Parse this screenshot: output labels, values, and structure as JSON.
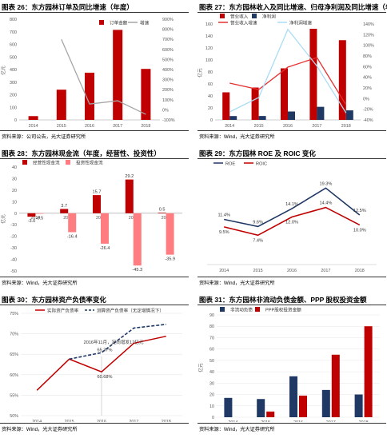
{
  "panels": [
    {
      "title": "图表 26：东方园林订单及同比增速（年度）",
      "source": "资料来源：公司公告，光大证券研究所",
      "chart_data": {
        "type": "bar+line",
        "categories": [
          "2014",
          "2015",
          "2016",
          "2017",
          "2018"
        ],
        "y_left": {
          "label": "亿元",
          "lim": [
            0,
            800
          ],
          "ticks": [
            0,
            100,
            200,
            300,
            400,
            500,
            600,
            700,
            800
          ]
        },
        "y_right": {
          "lim": [
            -100,
            900
          ],
          "ticks": [
            -100,
            0,
            100,
            200,
            300,
            400,
            500,
            600,
            700,
            800,
            900
          ],
          "suffix": "%"
        },
        "series": [
          {
            "name": "订单金额",
            "kind": "bar",
            "axis": "left",
            "color": "#c00000",
            "values": [
              30,
              240,
              375,
              715,
              405
            ]
          },
          {
            "name": "增速",
            "kind": "line",
            "axis": "right",
            "color": "#a6a6a6",
            "values": [
              null,
              700,
              57,
              90,
              -45
            ]
          }
        ],
        "legend": "top-right"
      }
    },
    {
      "title": "图表 27：东方园林收入及同比增速、归母净利润及同比增速（年度）",
      "source": "资料来源：Wind，光大证券研究所",
      "chart_data": {
        "type": "bar+line",
        "categories": [
          "2014",
          "2015",
          "2016",
          "2017",
          "2018"
        ],
        "y_left": {
          "label": "亿元",
          "lim": [
            0,
            160
          ],
          "ticks": [
            0,
            20,
            40,
            60,
            80,
            100,
            120,
            140,
            160
          ]
        },
        "y_right": {
          "lim": [
            -40,
            140
          ],
          "ticks": [
            -40,
            -20,
            0,
            20,
            40,
            60,
            80,
            100,
            120,
            140
          ],
          "suffix": "%"
        },
        "series": [
          {
            "name": "营业收入",
            "kind": "bar",
            "axis": "left",
            "color": "#c00000",
            "values": [
              46,
              54,
              86,
              152,
              133
            ]
          },
          {
            "name": "净利润",
            "kind": "bar",
            "axis": "left",
            "color": "#1f3864",
            "values": [
              6.4,
              6.5,
              14,
              21.8,
              15.9
            ]
          },
          {
            "name": "营业收入增速",
            "kind": "line",
            "axis": "right",
            "color": "#e63030",
            "values": [
              29,
              17,
              59,
              77,
              -12
            ]
          },
          {
            "name": "净利润增速",
            "kind": "line",
            "axis": "right",
            "color": "#a9dcf5",
            "values": [
              -25,
              2,
              130,
              61,
              -27
            ]
          }
        ],
        "legend": "top"
      }
    },
    {
      "title": "图表 28：东方园林现金流（年度，经营性、投资性）",
      "source": "资料来源：Wind，光大证券研究所",
      "chart_data": {
        "type": "bar",
        "categories": [
          "2014",
          "2015",
          "2016",
          "2017",
          "2018"
        ],
        "y_left": {
          "label": "亿元",
          "lim": [
            -50,
            40
          ],
          "ticks": [
            -50,
            -40,
            -30,
            -20,
            -10,
            0,
            10,
            20,
            30,
            40
          ]
        },
        "series": [
          {
            "name": "经营性现金流",
            "color": "#c00000",
            "values": [
              -3.0,
              3.7,
              15.7,
              29.2,
              0.5
            ],
            "labels": [
              "-3.0",
              "3.7",
              "15.7",
              "29.2",
              "0.5"
            ]
          },
          {
            "name": "投资性现金流",
            "color": "#ff7c80",
            "values": [
              -0.5,
              -16.4,
              -26.4,
              -45.3,
              -35.9
            ],
            "labels": [
              "-0.5",
              "-16.4",
              "-26.4",
              "-45.3",
              "-35.9"
            ]
          }
        ],
        "legend": "top-left"
      }
    },
    {
      "title": "图表 29：东方园林 ROE 及 ROIC 变化",
      "source": "资料来源：Wind，光大证券研究所",
      "chart_data": {
        "type": "line",
        "categories": [
          "2014",
          "2015",
          "2016",
          "2017",
          "2018"
        ],
        "ylim": [
          0,
          25
        ],
        "series": [
          {
            "name": "ROE",
            "color": "#1f3864",
            "values": [
              11.4,
              9.6,
              14.1,
              19.3,
              12.5
            ],
            "labels": [
              "11.4%",
              "9.6%",
              "14.1%",
              "19.3%",
              "12.5%"
            ]
          },
          {
            "name": "ROIC",
            "color": "#c00000",
            "values": [
              9.5,
              7.4,
              12.0,
              14.4,
              10.0
            ],
            "labels": [
              "9.5%",
              "7.4%",
              "12.0%",
              "14.4%",
              "10.0%"
            ]
          }
        ],
        "legend": "top-left"
      }
    },
    {
      "title": "图表 30：东方园林资产负债率变化",
      "source": "资料来源：Wind，光大证券研究所",
      "chart_data": {
        "type": "line",
        "categories": [
          "2014",
          "2015",
          "2016",
          "2017",
          "2018"
        ],
        "ylim": [
          50,
          75
        ],
        "ticks": [
          50,
          55,
          60,
          65,
          70,
          75
        ],
        "suffix": "%",
        "series": [
          {
            "name": "实际资产负债率",
            "color": "#c00000",
            "values": [
              56.2,
              63.8,
              60.7,
              67.7,
              69.4
            ]
          },
          {
            "name": "测算资产负债率（无定增情况下）",
            "color": "#1f3864",
            "dashed": true,
            "values": [
              null,
              63.8,
              65.4,
              71.4,
              72.3
            ]
          }
        ],
        "annotations": [
          "2016年11月，定向增发17亿元",
          "65.37%",
          "60.68%"
        ],
        "legend": "top"
      }
    },
    {
      "title": "图表 31：东方园林非流动负债金额、PPP 股权投资金额",
      "source": "资料来源：Wind，光大证券研究所",
      "chart_data": {
        "type": "bar",
        "categories": [
          "2014",
          "2015",
          "2016",
          "2017",
          "2018"
        ],
        "y_left": {
          "label": "亿元",
          "lim": [
            0,
            90
          ],
          "ticks": [
            0,
            10,
            20,
            30,
            40,
            50,
            60,
            70,
            80,
            90
          ]
        },
        "series": [
          {
            "name": "非流动负债",
            "color": "#1f3864",
            "values": [
              17,
              16,
              36,
              24,
              20
            ]
          },
          {
            "name": "PPP股权投资金额",
            "color": "#c00000",
            "values": [
              0,
              5,
              19,
              55,
              80
            ]
          }
        ],
        "legend": "top-left"
      }
    }
  ]
}
